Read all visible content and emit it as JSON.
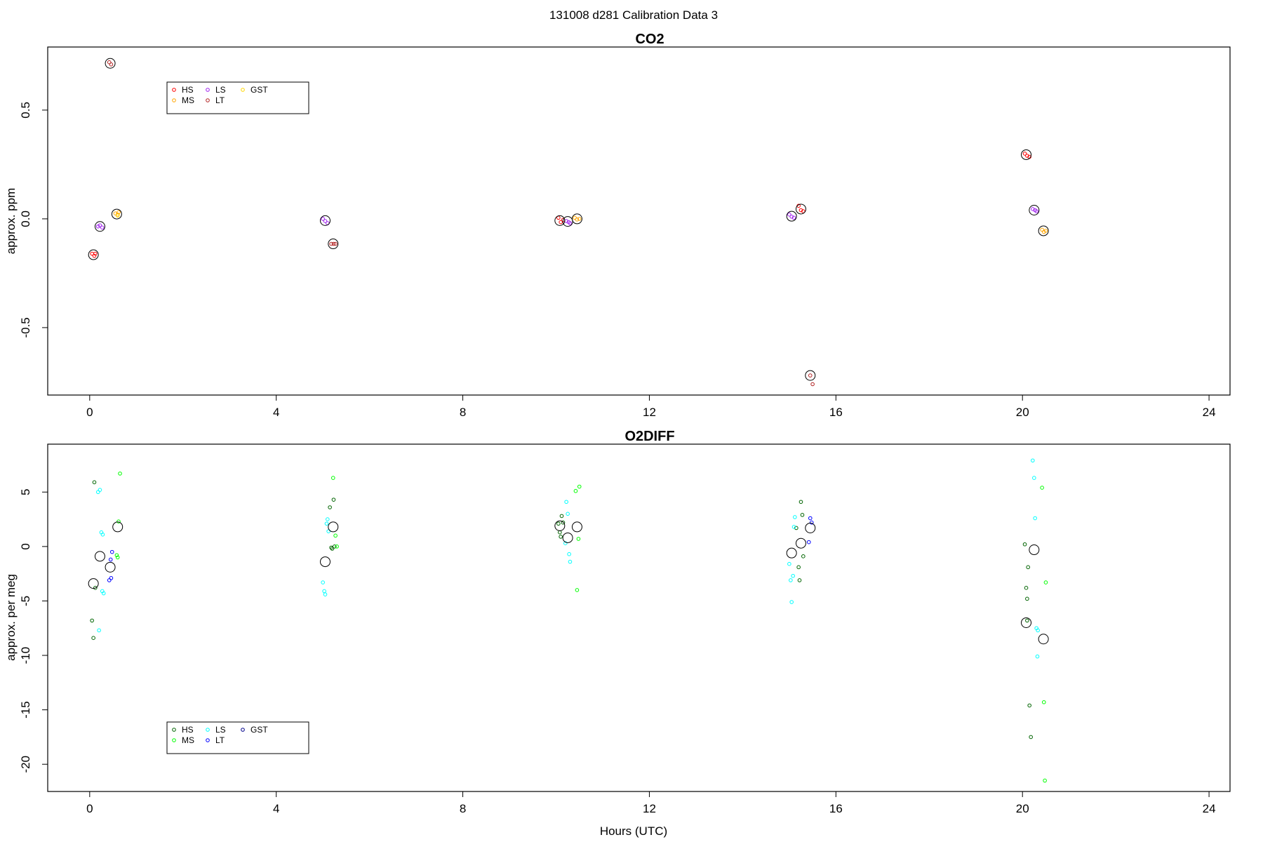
{
  "suptitle": "131008   d281   Calibration Data 3",
  "xlabel": "Hours (UTC)",
  "colors": {
    "HS": "#ff0000",
    "MS": "#ffa500",
    "LS": "#a020f0",
    "LT": "#b22222",
    "GST": "#ffd700",
    "HS2": "#006400",
    "MS2": "#00ff00",
    "LS2": "#00ffff",
    "LT2": "#0000ff",
    "GST2": "#00008b",
    "mean_circle": "#000000"
  },
  "chart_data": [
    {
      "type": "scatter",
      "title": "CO2",
      "xlabel": "",
      "ylabel": "approx. ppm",
      "xlim": [
        -0.9,
        24.45
      ],
      "ylim": [
        -0.81,
        0.79
      ],
      "xticks": [
        "0",
        "4",
        "8",
        "12",
        "16",
        "20",
        "24"
      ],
      "yticks": [
        "-0.5",
        "0.0",
        "0.5"
      ],
      "grid": false,
      "legend": {
        "placement": "top-left",
        "entries": [
          {
            "label": "HS",
            "color_key": "HS"
          },
          {
            "label": "MS",
            "color_key": "MS"
          },
          {
            "label": "LS",
            "color_key": "LS"
          },
          {
            "label": "LT",
            "color_key": "LT"
          },
          {
            "label": "GST",
            "color_key": "GST"
          }
        ]
      },
      "means": [
        {
          "x": 0.08,
          "y": -0.165
        },
        {
          "x": 0.22,
          "y": -0.035
        },
        {
          "x": 0.44,
          "y": 0.715
        },
        {
          "x": 0.58,
          "y": 0.022
        },
        {
          "x": 5.05,
          "y": -0.008
        },
        {
          "x": 5.22,
          "y": -0.115
        },
        {
          "x": 10.08,
          "y": -0.008
        },
        {
          "x": 10.25,
          "y": -0.012
        },
        {
          "x": 10.45,
          "y": 0.0
        },
        {
          "x": 15.05,
          "y": 0.012
        },
        {
          "x": 15.25,
          "y": 0.045
        },
        {
          "x": 15.45,
          "y": -0.72
        },
        {
          "x": 20.08,
          "y": 0.295
        },
        {
          "x": 20.25,
          "y": 0.04
        },
        {
          "x": 20.45,
          "y": -0.055
        }
      ],
      "series": [
        {
          "name": "HS",
          "color_key": "HS",
          "points": [
            {
              "x": 0.05,
              "y": -0.16
            },
            {
              "x": 0.1,
              "y": -0.17
            },
            {
              "x": 0.12,
              "y": -0.16
            },
            {
              "x": 10.05,
              "y": 0.005
            },
            {
              "x": 10.1,
              "y": -0.015
            },
            {
              "x": 10.15,
              "y": -0.005
            },
            {
              "x": 15.2,
              "y": 0.06
            },
            {
              "x": 15.25,
              "y": 0.04
            },
            {
              "x": 15.3,
              "y": 0.035
            },
            {
              "x": 20.05,
              "y": 0.3
            },
            {
              "x": 20.1,
              "y": 0.29
            },
            {
              "x": 20.15,
              "y": 0.285
            }
          ]
        },
        {
          "name": "MS",
          "color_key": "MS",
          "points": [
            {
              "x": 0.55,
              "y": 0.025
            },
            {
              "x": 0.6,
              "y": 0.02
            },
            {
              "x": 0.62,
              "y": 0.03
            },
            {
              "x": 10.4,
              "y": 0.005
            },
            {
              "x": 10.45,
              "y": -0.003
            },
            {
              "x": 10.5,
              "y": 0.0
            },
            {
              "x": 20.42,
              "y": -0.05
            },
            {
              "x": 20.46,
              "y": -0.06
            },
            {
              "x": 20.5,
              "y": -0.055
            }
          ]
        },
        {
          "name": "LS",
          "color_key": "LS",
          "points": [
            {
              "x": 0.18,
              "y": -0.035
            },
            {
              "x": 0.22,
              "y": -0.03
            },
            {
              "x": 0.27,
              "y": -0.04
            },
            {
              "x": 5.0,
              "y": 0.0
            },
            {
              "x": 5.05,
              "y": -0.01
            },
            {
              "x": 5.1,
              "y": -0.02
            },
            {
              "x": 10.22,
              "y": -0.01
            },
            {
              "x": 10.27,
              "y": -0.015
            },
            {
              "x": 10.3,
              "y": -0.02
            },
            {
              "x": 15.0,
              "y": 0.02
            },
            {
              "x": 15.05,
              "y": 0.01
            },
            {
              "x": 15.1,
              "y": 0.005
            },
            {
              "x": 20.22,
              "y": 0.045
            },
            {
              "x": 20.27,
              "y": 0.04
            },
            {
              "x": 20.3,
              "y": 0.035
            }
          ]
        },
        {
          "name": "LT",
          "color_key": "LT",
          "points": [
            {
              "x": 0.42,
              "y": 0.72
            },
            {
              "x": 0.46,
              "y": 0.71
            },
            {
              "x": 5.18,
              "y": -0.115
            },
            {
              "x": 5.23,
              "y": -0.115
            },
            {
              "x": 5.27,
              "y": -0.115
            },
            {
              "x": 15.45,
              "y": -0.72
            },
            {
              "x": 15.5,
              "y": -0.76
            }
          ]
        },
        {
          "name": "GST",
          "color_key": "GST",
          "points": [
            {
              "x": 0.6,
              "y": 0.015
            }
          ]
        }
      ]
    },
    {
      "type": "scatter",
      "title": "O2DIFF",
      "xlabel": "Hours (UTC)",
      "ylabel": "approx. per meg",
      "xlim": [
        -0.9,
        24.45
      ],
      "ylim": [
        -22.5,
        9.4
      ],
      "xticks": [
        "0",
        "4",
        "8",
        "12",
        "16",
        "20",
        "24"
      ],
      "yticks": [
        "-20",
        "-15",
        "-10",
        "-5",
        "0",
        "5"
      ],
      "grid": false,
      "legend": {
        "placement": "bottom-left",
        "entries": [
          {
            "label": "HS",
            "color_key": "HS2"
          },
          {
            "label": "MS",
            "color_key": "MS2"
          },
          {
            "label": "LS",
            "color_key": "LS2"
          },
          {
            "label": "LT",
            "color_key": "LT2"
          },
          {
            "label": "GST",
            "color_key": "GST2"
          }
        ]
      },
      "means": [
        {
          "x": 0.08,
          "y": -3.4
        },
        {
          "x": 0.22,
          "y": -0.9
        },
        {
          "x": 0.44,
          "y": -1.9
        },
        {
          "x": 0.6,
          "y": 1.8
        },
        {
          "x": 5.05,
          "y": -1.4
        },
        {
          "x": 5.22,
          "y": 1.8
        },
        {
          "x": 10.08,
          "y": 1.9
        },
        {
          "x": 10.25,
          "y": 0.8
        },
        {
          "x": 10.45,
          "y": 1.8
        },
        {
          "x": 15.05,
          "y": -0.6
        },
        {
          "x": 15.25,
          "y": 0.3
        },
        {
          "x": 15.45,
          "y": 1.7
        },
        {
          "x": 20.08,
          "y": -7.0
        },
        {
          "x": 20.25,
          "y": -0.3
        },
        {
          "x": 20.45,
          "y": -8.5
        }
      ],
      "series": [
        {
          "name": "HS",
          "color_key": "HS2",
          "points": [
            {
              "x": 0.05,
              "y": -6.8
            },
            {
              "x": 0.08,
              "y": -8.4
            },
            {
              "x": 0.1,
              "y": 5.9
            },
            {
              "x": 0.12,
              "y": -3.8
            },
            {
              "x": 5.15,
              "y": 3.6
            },
            {
              "x": 5.18,
              "y": -0.1
            },
            {
              "x": 5.2,
              "y": -0.2
            },
            {
              "x": 5.23,
              "y": 4.3
            },
            {
              "x": 5.25,
              "y": 0.0
            },
            {
              "x": 10.05,
              "y": 2.1
            },
            {
              "x": 10.08,
              "y": 1.3
            },
            {
              "x": 10.1,
              "y": 0.9
            },
            {
              "x": 10.12,
              "y": 2.8
            },
            {
              "x": 10.15,
              "y": 2.2
            },
            {
              "x": 15.15,
              "y": 1.7
            },
            {
              "x": 15.2,
              "y": -1.9
            },
            {
              "x": 15.25,
              "y": 4.1
            },
            {
              "x": 15.28,
              "y": 2.9
            },
            {
              "x": 15.3,
              "y": -0.9
            },
            {
              "x": 15.22,
              "y": -3.1
            },
            {
              "x": 20.05,
              "y": 0.2
            },
            {
              "x": 20.08,
              "y": -3.8
            },
            {
              "x": 20.1,
              "y": -4.8
            },
            {
              "x": 20.12,
              "y": -1.9
            },
            {
              "x": 20.15,
              "y": -14.6
            },
            {
              "x": 20.18,
              "y": -17.5
            },
            {
              "x": 20.1,
              "y": -6.8
            }
          ]
        },
        {
          "name": "MS",
          "color_key": "MS2",
          "points": [
            {
              "x": 0.6,
              "y": -1.0
            },
            {
              "x": 0.62,
              "y": 2.3
            },
            {
              "x": 0.65,
              "y": 6.7
            },
            {
              "x": 0.58,
              "y": -0.8
            },
            {
              "x": 5.22,
              "y": 6.3
            },
            {
              "x": 5.27,
              "y": 1.0
            },
            {
              "x": 5.3,
              "y": 0.0
            },
            {
              "x": 10.42,
              "y": 5.1
            },
            {
              "x": 10.45,
              "y": -4.0
            },
            {
              "x": 10.5,
              "y": 5.5
            },
            {
              "x": 10.48,
              "y": 0.7
            },
            {
              "x": 20.42,
              "y": 5.4
            },
            {
              "x": 20.46,
              "y": -14.3
            },
            {
              "x": 20.48,
              "y": -21.5
            },
            {
              "x": 20.5,
              "y": -3.3
            }
          ]
        },
        {
          "name": "LS",
          "color_key": "LS2",
          "points": [
            {
              "x": 0.18,
              "y": 5.0
            },
            {
              "x": 0.2,
              "y": -7.7
            },
            {
              "x": 0.22,
              "y": 5.2
            },
            {
              "x": 0.25,
              "y": 1.3
            },
            {
              "x": 0.27,
              "y": -4.1
            },
            {
              "x": 0.3,
              "y": -4.3
            },
            {
              "x": 0.28,
              "y": 1.1
            },
            {
              "x": 5.0,
              "y": -3.3
            },
            {
              "x": 5.03,
              "y": -4.1
            },
            {
              "x": 5.05,
              "y": -4.4
            },
            {
              "x": 5.08,
              "y": 2.1
            },
            {
              "x": 5.1,
              "y": 2.5
            },
            {
              "x": 5.12,
              "y": 1.4
            },
            {
              "x": 10.22,
              "y": 4.1
            },
            {
              "x": 10.25,
              "y": 3.0
            },
            {
              "x": 10.28,
              "y": -0.7
            },
            {
              "x": 10.3,
              "y": -1.4
            },
            {
              "x": 10.2,
              "y": 0.3
            },
            {
              "x": 15.0,
              "y": -1.6
            },
            {
              "x": 15.03,
              "y": -3.1
            },
            {
              "x": 15.05,
              "y": -5.1
            },
            {
              "x": 15.08,
              "y": -2.7
            },
            {
              "x": 15.1,
              "y": 1.8
            },
            {
              "x": 15.12,
              "y": 2.7
            },
            {
              "x": 20.22,
              "y": 7.9
            },
            {
              "x": 20.25,
              "y": 6.3
            },
            {
              "x": 20.27,
              "y": 2.6
            },
            {
              "x": 20.3,
              "y": -7.5
            },
            {
              "x": 20.33,
              "y": -7.7
            },
            {
              "x": 20.32,
              "y": -10.1
            }
          ]
        },
        {
          "name": "LT",
          "color_key": "LT2",
          "points": [
            {
              "x": 0.42,
              "y": -3.1
            },
            {
              "x": 0.45,
              "y": -1.2
            },
            {
              "x": 0.48,
              "y": -0.5
            },
            {
              "x": 0.46,
              "y": -2.9
            },
            {
              "x": 15.42,
              "y": 0.4
            },
            {
              "x": 15.45,
              "y": 2.6
            },
            {
              "x": 15.48,
              "y": 2.2
            }
          ]
        },
        {
          "name": "GST",
          "color_key": "GST2",
          "points": []
        }
      ]
    }
  ]
}
